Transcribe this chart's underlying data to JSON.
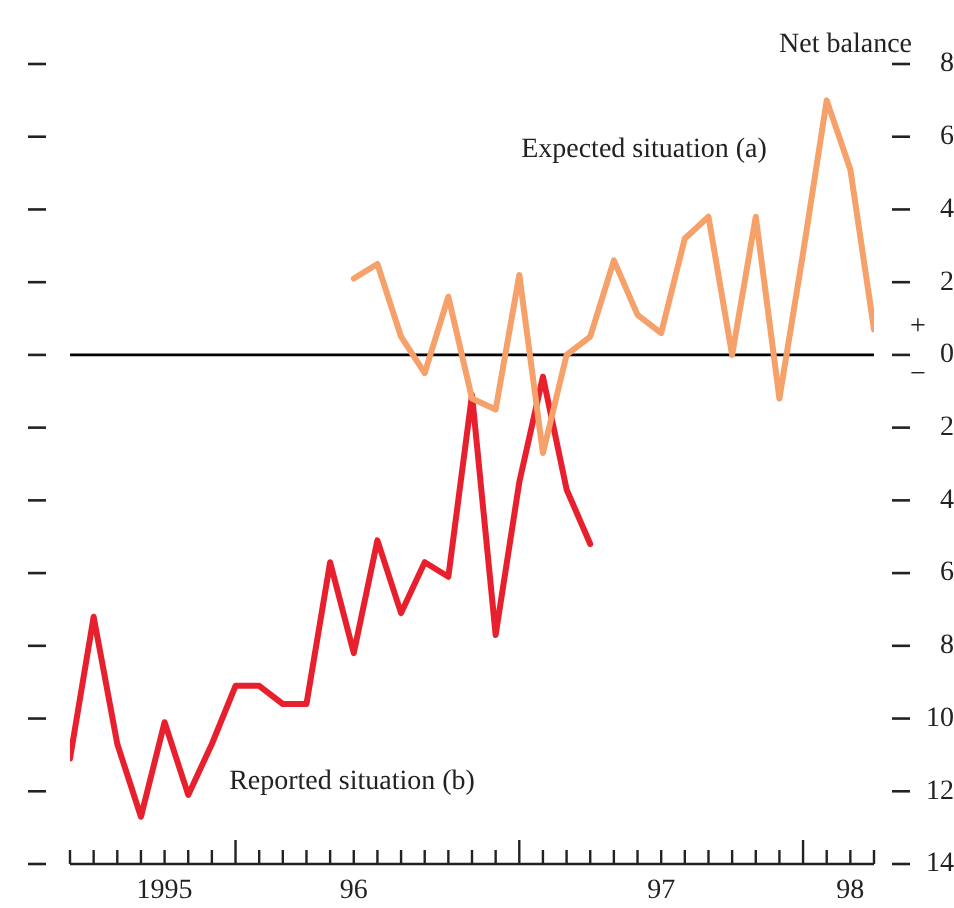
{
  "chart_data": {
    "type": "line",
    "ylabel": "Net balance",
    "annotations": [
      "+",
      "−"
    ],
    "xlim": [
      "1995-06",
      "1998-04"
    ],
    "xticks": [
      {
        "value": "1995-06",
        "label": null
      },
      {
        "value": "1995-07",
        "label": null
      },
      {
        "value": "1995-08",
        "label": null
      },
      {
        "value": "1995-09",
        "label": null
      },
      {
        "value": "1995-10",
        "label": "1995"
      },
      {
        "value": "1995-11",
        "label": null
      },
      {
        "value": "1995-12",
        "label": null
      },
      {
        "value": "1996-01",
        "label": null
      },
      {
        "value": "1996-02",
        "label": null
      },
      {
        "value": "1996-03",
        "label": null
      },
      {
        "value": "1996-04",
        "label": null
      },
      {
        "value": "1996-05",
        "label": null
      },
      {
        "value": "1996-06",
        "label": "96"
      },
      {
        "value": "1996-07",
        "label": null
      },
      {
        "value": "1996-08",
        "label": null
      },
      {
        "value": "1996-09",
        "label": null
      },
      {
        "value": "1996-10",
        "label": null
      },
      {
        "value": "1996-11",
        "label": null
      },
      {
        "value": "1996-12",
        "label": null
      },
      {
        "value": "1997-01",
        "label": null
      },
      {
        "value": "1997-02",
        "label": null
      },
      {
        "value": "1997-03",
        "label": null
      },
      {
        "value": "1997-04",
        "label": null
      },
      {
        "value": "1997-05",
        "label": null
      },
      {
        "value": "1997-06",
        "label": null
      },
      {
        "value": "1997-07",
        "label": "97"
      },
      {
        "value": "1997-08",
        "label": null
      },
      {
        "value": "1997-09",
        "label": null
      },
      {
        "value": "1997-10",
        "label": null
      },
      {
        "value": "1997-11",
        "label": null
      },
      {
        "value": "1997-12",
        "label": null
      },
      {
        "value": "1998-01",
        "label": null
      },
      {
        "value": "1998-02",
        "label": null
      },
      {
        "value": "1998-03",
        "label": "98"
      },
      {
        "value": "1998-04",
        "label": null
      }
    ],
    "ylim": [
      -14,
      8
    ],
    "yticks": [
      {
        "value": -14,
        "label": "14"
      },
      {
        "value": -12,
        "label": "12"
      },
      {
        "value": -10,
        "label": "10"
      },
      {
        "value": -8,
        "label": "8"
      },
      {
        "value": -6,
        "label": "6"
      },
      {
        "value": -4,
        "label": "4"
      },
      {
        "value": -2,
        "label": "2"
      },
      0,
      2,
      4,
      6,
      8
    ],
    "marker": "none",
    "line_style": "solid",
    "legend": false,
    "ref_lines": [
      {
        "axis": "y",
        "value": 0,
        "color": "#000000"
      }
    ],
    "series": [
      {
        "name": "Expected situation (a)",
        "color": "#f6a06a",
        "x": [
          "1996-06",
          "1996-07",
          "1996-08",
          "1996-09",
          "1996-10",
          "1996-11",
          "1996-12",
          "1997-01",
          "1997-02",
          "1997-03",
          "1997-04",
          "1997-05",
          "1997-06",
          "1997-07",
          "1997-08",
          "1997-09",
          "1997-10",
          "1997-11",
          "1997-12",
          "1998-01",
          "1998-02",
          "1998-03",
          "1998-04"
        ],
        "values": [
          2.1,
          2.5,
          0.5,
          -0.5,
          1.6,
          -1.2,
          -1.5,
          2.2,
          -2.7,
          0,
          0.5,
          2.6,
          1.1,
          0.6,
          3.2,
          3.8,
          0,
          3.8,
          -1.2,
          2.8,
          7,
          5.1,
          0.7
        ]
      },
      {
        "name": "Reported situation (b)",
        "color": "#e8202e",
        "x": [
          "1995-06",
          "1995-07",
          "1995-08",
          "1995-09",
          "1995-10",
          "1995-11",
          "1995-12",
          "1996-01",
          "1996-02",
          "1996-03",
          "1996-04",
          "1996-05",
          "1996-06",
          "1996-07",
          "1996-08",
          "1996-09",
          "1996-10",
          "1996-11",
          "1996-12",
          "1997-01",
          "1997-02",
          "1997-03",
          "1997-04"
        ],
        "values": [
          -11.1,
          -7.2,
          -10.7,
          -12.7,
          -10.1,
          -12.1,
          -10.7,
          -9.1,
          -9.1,
          -9.6,
          -9.6,
          -5.7,
          -8.2,
          -5.1,
          -7.1,
          -5.7,
          -6.1,
          -1.1,
          -7.7,
          -3.5,
          -0.6,
          -3.7,
          -5.2
        ]
      }
    ]
  }
}
